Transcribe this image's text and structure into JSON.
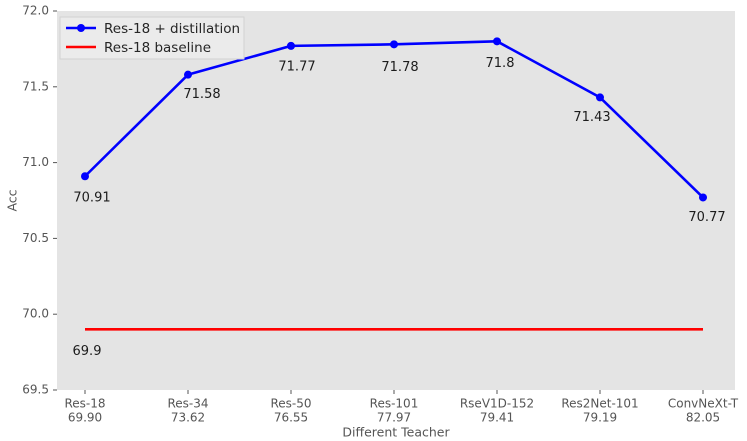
{
  "chart_data": {
    "type": "line",
    "title": "",
    "xlabel": "Different Teacher",
    "ylabel": "Acc",
    "ylim": [
      69.5,
      72.0
    ],
    "yticks": [
      69.5,
      70.0,
      70.5,
      71.0,
      71.5,
      72.0
    ],
    "ytick_labels": [
      "69.5",
      "70.0",
      "70.5",
      "71.0",
      "71.5",
      "72.0"
    ],
    "grid": false,
    "legend_position": "upper left",
    "colors": {
      "plot_background": "#e4e4e4",
      "figure_background": "#ffffff",
      "tick_text": "#555555",
      "axis_title_text": "#555555",
      "annotation_text": "#1c1c1c",
      "legend_background": "#ebebeb",
      "legend_border": "#d2d2d2",
      "legend_text": "#262626",
      "series_distillation": "#0000ff",
      "series_baseline": "#ff0000"
    },
    "categories": [
      {
        "teacher": "Res-18",
        "teacher_acc": "69.90"
      },
      {
        "teacher": "Res-34",
        "teacher_acc": "73.62"
      },
      {
        "teacher": "Res-50",
        "teacher_acc": "76.55"
      },
      {
        "teacher": "Res-101",
        "teacher_acc": "77.97"
      },
      {
        "teacher": "RseV1D-152",
        "teacher_acc": "79.41"
      },
      {
        "teacher": "Res2Net-101",
        "teacher_acc": "79.19"
      },
      {
        "teacher": "ConvNeXt-T",
        "teacher_acc": "82.05"
      }
    ],
    "series": [
      {
        "name": "Res-18 + distillation",
        "color_key": "series_distillation",
        "marker": "circle",
        "values": [
          70.91,
          71.58,
          71.77,
          71.78,
          71.8,
          71.43,
          70.77
        ],
        "point_labels": [
          "70.91",
          "71.58",
          "71.77",
          "71.78",
          "71.8",
          "71.43",
          "70.77"
        ]
      },
      {
        "name": "Res-18 baseline",
        "color_key": "series_baseline",
        "marker": "none",
        "values": [
          69.9,
          69.9,
          69.9,
          69.9,
          69.9,
          69.9,
          69.9
        ],
        "line_label": "69.9"
      }
    ]
  }
}
